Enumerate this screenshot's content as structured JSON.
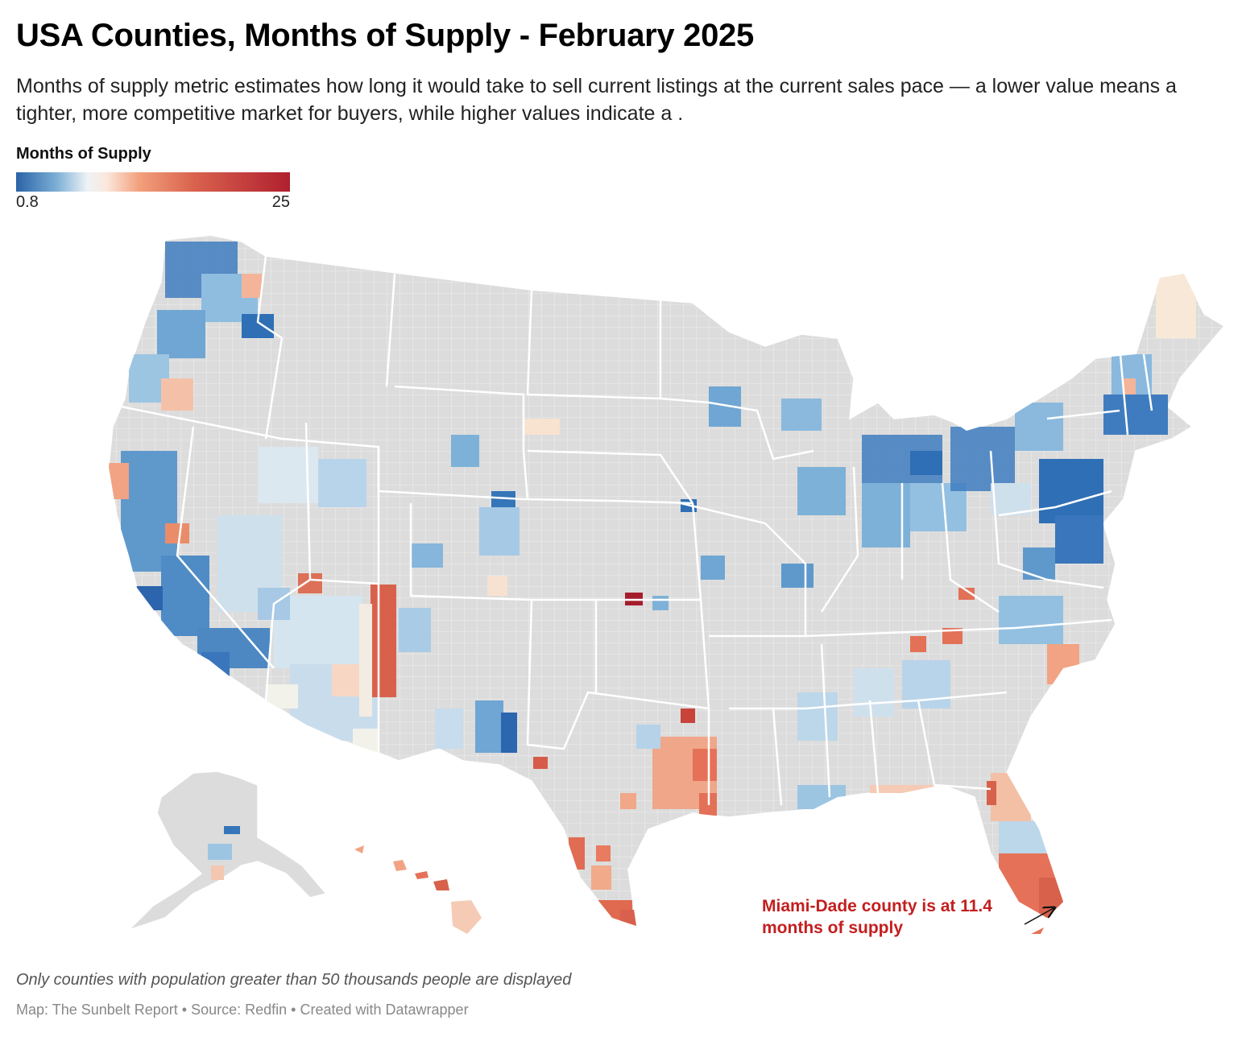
{
  "header": {
    "title": "USA Counties, Months of Supply - February 2025",
    "subtitle": "Months of supply metric estimates how long it would take to sell current listings at the current sales pace — a lower value means a tighter, more competitive market for buyers, while higher values indicate a ."
  },
  "legend": {
    "title": "Months of Supply",
    "min_label": "0.8",
    "max_label": "25",
    "colors": [
      "#2a63a8",
      "#7eb0d6",
      "#eef3f6",
      "#fbe8dd",
      "#f2a07c",
      "#d9624e",
      "#b01f2e"
    ]
  },
  "map": {
    "no_data_color": "#dcdcdc",
    "border_color": "#ffffff",
    "regions": [
      "contiguous-us",
      "alaska",
      "hawaii"
    ]
  },
  "annotation": {
    "text": "Miami-Dade county is at 11.4 months of supply",
    "color": "#c41e1e"
  },
  "footer": {
    "notes": "Only counties with population greater than 50 thousands people are displayed",
    "credits": "Map: The Sunbelt Report • Source: Redfin  • Created with Datawrapper"
  }
}
